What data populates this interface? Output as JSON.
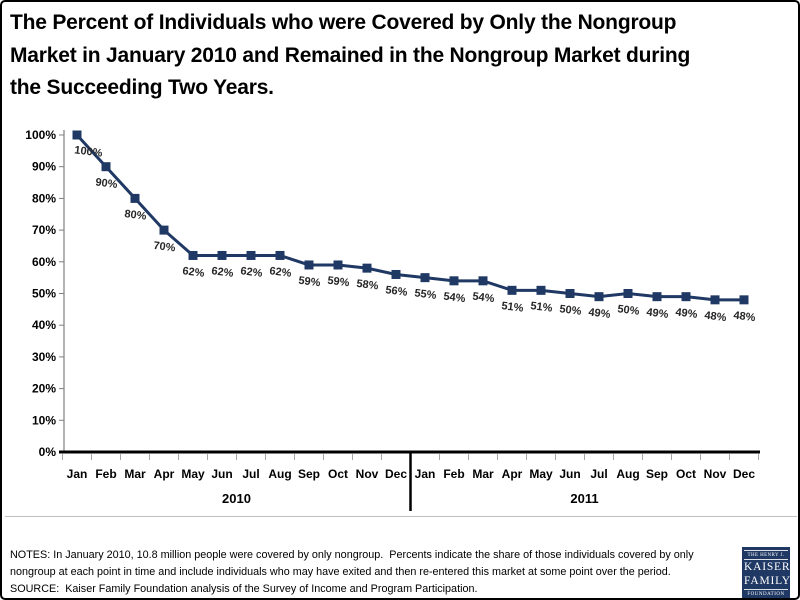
{
  "page": {
    "title": "The Percent of Individuals who were Covered by Only the Nongroup\nMarket in January 2010 and Remained in the Nongroup Market during\nthe Succeeding Two Years."
  },
  "chart_data": {
    "type": "line",
    "title": "The Percent of Individuals who were Covered by Only the Nongroup Market in January 2010 and Remained in the Nongroup Market during the Succeeding Two Years.",
    "xlabel": "",
    "ylabel": "",
    "ylim": [
      0,
      100
    ],
    "grid": false,
    "legend": "none",
    "line_color": "#1F3864",
    "marker": "square",
    "categories": [
      "Jan",
      "Feb",
      "Mar",
      "Apr",
      "May",
      "Jun",
      "Jul",
      "Aug",
      "Sep",
      "Oct",
      "Nov",
      "Dec",
      "Jan",
      "Feb",
      "Mar",
      "Apr",
      "May",
      "Jun",
      "Jul",
      "Aug",
      "Sep",
      "Oct",
      "Nov",
      "Dec"
    ],
    "year_groups": [
      {
        "label": "2010",
        "count": 12
      },
      {
        "label": "2011",
        "count": 12
      }
    ],
    "values": [
      100,
      90,
      80,
      70,
      62,
      62,
      62,
      62,
      59,
      59,
      58,
      56,
      55,
      54,
      54,
      51,
      51,
      50,
      49,
      50,
      49,
      49,
      48,
      48
    ],
    "data_labels": [
      "100%",
      "90%",
      "80%",
      "70%",
      "62%",
      "62%",
      "62%",
      "62%",
      "59%",
      "59%",
      "58%",
      "56%",
      "55%",
      "54%",
      "54%",
      "51%",
      "51%",
      "50%",
      "49%",
      "50%",
      "49%",
      "49%",
      "48%",
      "48%"
    ],
    "y_tick_labels": [
      "0%",
      "10%",
      "20%",
      "30%",
      "40%",
      "50%",
      "60%",
      "70%",
      "80%",
      "90%",
      "100%"
    ]
  },
  "footer": {
    "notes": "NOTES: In January 2010, 10.8 million people were covered by only nongroup.  Percents indicate the share of those individuals covered by only\nnongroup at each point in time and include individuals who may have exited and then re-entered this market at some point over the period.\nSOURCE:  Kaiser Family Foundation analysis of the Survey of Income and Program Participation.",
    "logo": {
      "line1": "THE HENRY J.",
      "line2": "KAISER",
      "line3": "FAMILY",
      "line4": "FOUNDATION",
      "bg_color": "#1F3864"
    }
  }
}
